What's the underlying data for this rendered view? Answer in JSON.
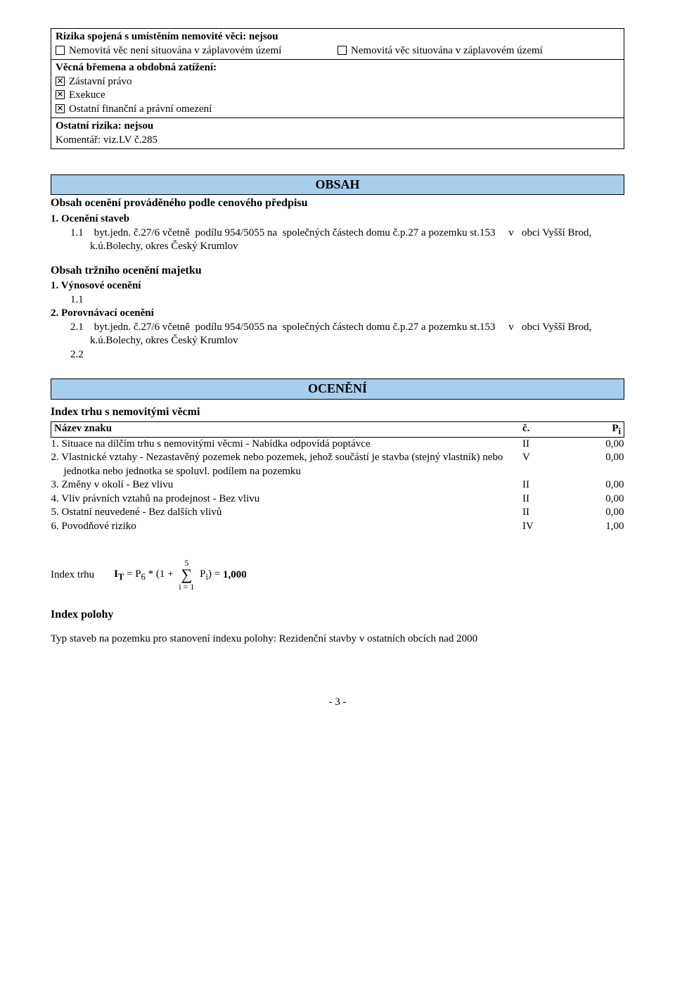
{
  "box1": {
    "title": "Rizika spojená s umístěním nemovité věci: nejsou",
    "left_item": "Nemovitá věc není situována v záplavovém území",
    "right_item": "Nemovitá věc situována v záplavovém území"
  },
  "box2": {
    "title": "Věcná břemena a obdobná zatížení:",
    "items": [
      "Zástavní právo",
      "Exekuce",
      "Ostatní finanční a právní omezení"
    ]
  },
  "box3": {
    "l1": "Ostatní rizika: nejsou",
    "l2": "Komentář: viz.LV   č.285"
  },
  "obsah": {
    "bar": "OBSAH",
    "h1": "Obsah ocenění prováděného podle cenového předpisu",
    "s1": "1. Ocenění staveb",
    "s1_1": "1.1    byt.jedn. č.27/6 včetně  podílu 954/5055 na  společných částech domu č.p.27 a pozemku st.153     v   obci Vyšší Brod, k.ú.Bolechy, okres Český Krumlov",
    "h2": "Obsah tržního ocenění majetku",
    "s2": "1. Výnosové ocenění",
    "s2_1": "1.1",
    "s3": "2. Porovnávací ocenění",
    "s3_1": "2.1    byt.jedn. č.27/6 včetně  podílu 954/5055 na  společných částech domu č.p.27 a pozemku st.153     v   obci Vyšší Brod, k.ú.Bolechy, okres Český Krumlov",
    "s3_2": "2.2"
  },
  "oceneni": {
    "bar": "OCENĚNÍ",
    "idx_title": "Index trhu s nemovitými věcmi",
    "hdr_name": "Název znaku",
    "hdr_c": "č.",
    "hdr_p": "Pi",
    "rows": [
      {
        "t": "1. Situace na dílčím trhu s nemovitými věcmi - Nabídka odpovídá poptávce",
        "c": "II",
        "p": "0,00"
      },
      {
        "t": "2. Vlastnické vztahy - Nezastavěný pozemek nebo pozemek, jehož součástí je stavba (stejný vlastník) nebo jednotka nebo jednotka se spoluvl. podílem na pozemku",
        "c": "V",
        "p": "0,00"
      },
      {
        "t": "3. Změny v okolí - Bez vlivu",
        "c": "II",
        "p": "0,00"
      },
      {
        "t": "4. Vliv právních vztahů na prodejnost - Bez vlivu",
        "c": "II",
        "p": "0,00"
      },
      {
        "t": "5. Ostatní neuvedené - Bez dalších vlivů",
        "c": "II",
        "p": "0,00"
      },
      {
        "t": "6. Povodňové riziko",
        "c": "IV",
        "p": "1,00"
      }
    ],
    "formula_label": "Index trhu",
    "formula_pre": "IT = P6 * (1 + ",
    "sigma_top": "5",
    "sigma_bot": "i = 1",
    "formula_post": " Pi) = ",
    "formula_val": "1,000",
    "idx_polohy": "Index polohy",
    "typ_staveb": "Typ staveb na pozemku pro stanovení indexu polohy: Rezidenční stavby v ostatních obcích nad 2000"
  },
  "page": "- 3 -"
}
